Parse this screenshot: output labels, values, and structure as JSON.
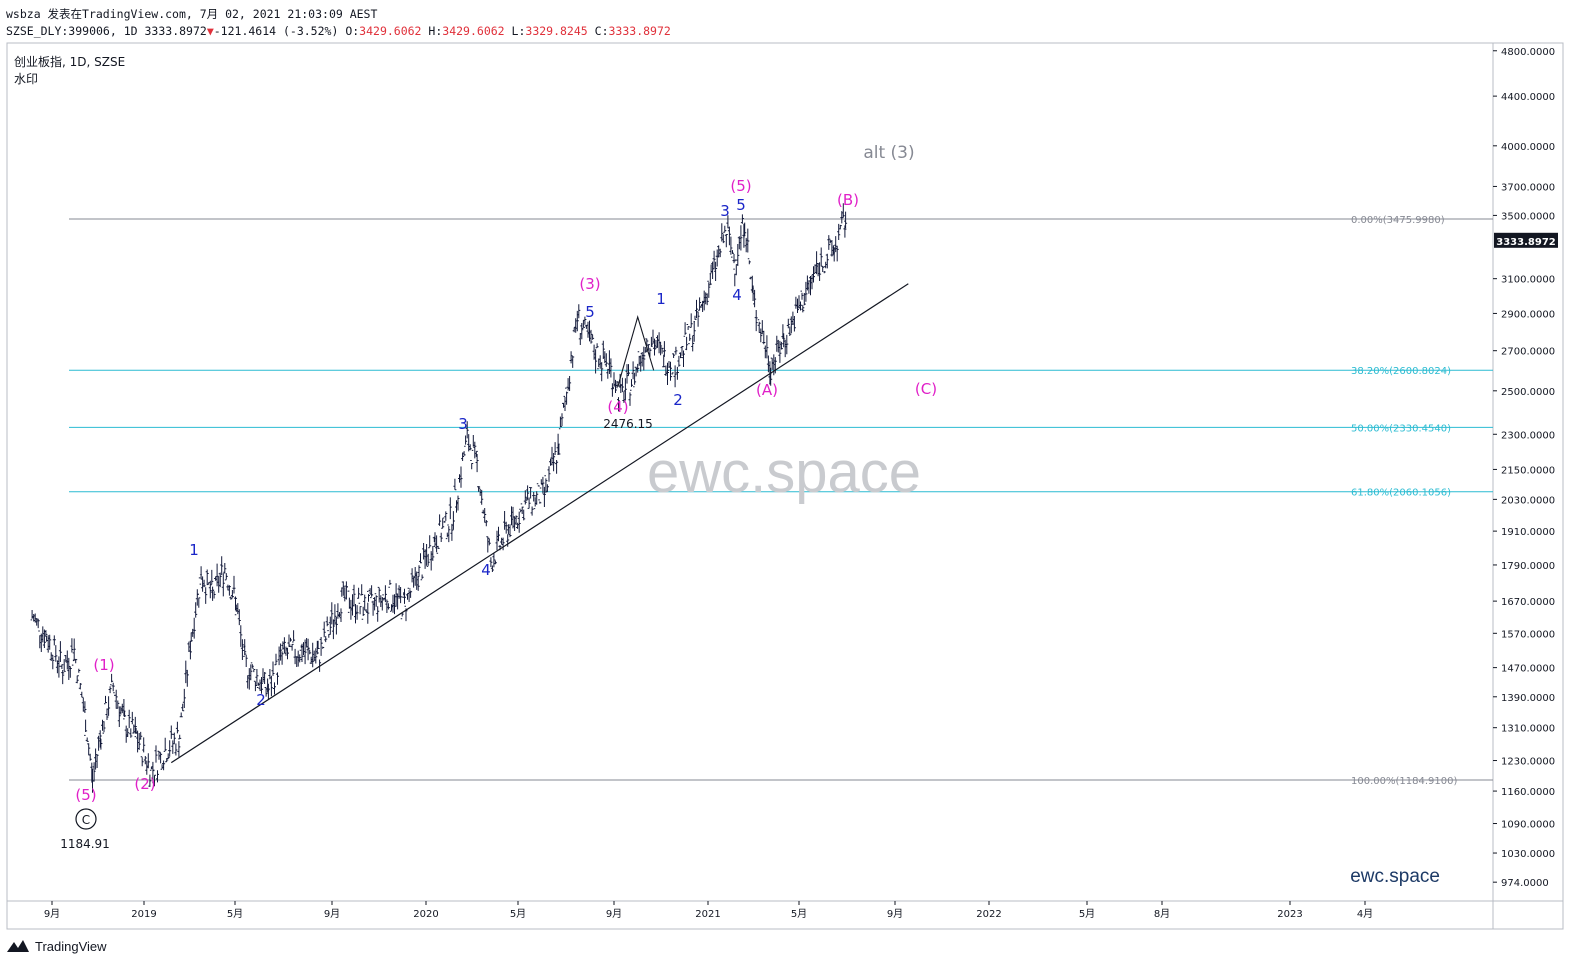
{
  "header": {
    "line1": "wsbza 发表在TradingView.com, 7月 02, 2021 21:03:09 AEST",
    "symbol": "SZSE_DLY:399006, 1D",
    "last": "3333.8972",
    "change": "-121.4614 (-3.52%)",
    "o_label": "O:",
    "o": "3429.6062",
    "h_label": "H:",
    "h": "3429.6062",
    "l_label": "L:",
    "l": "3329.8245",
    "c_label": "C:",
    "c": "3333.8972"
  },
  "legend": {
    "title": "创业板指, 1D, SZSE",
    "watermark_label": "水印"
  },
  "watermarks": {
    "center": "ewc.space",
    "corner": "ewc.space"
  },
  "price_tag": "3333.8972",
  "y_axis_ticks": [
    "4800.0000",
    "4400.0000",
    "4000.0000",
    "3700.0000",
    "3500.0000",
    "3100.0000",
    "2900.0000",
    "2700.0000",
    "2500.0000",
    "2300.0000",
    "2150.0000",
    "2030.0000",
    "1910.0000",
    "1790.0000",
    "1670.0000",
    "1570.0000",
    "1470.0000",
    "1390.0000",
    "1310.0000",
    "1230.0000",
    "1160.0000",
    "1090.0000",
    "1030.0000",
    "974.0000"
  ],
  "x_axis_ticks": [
    "9月",
    "2019",
    "5月",
    "9月",
    "2020",
    "5月",
    "9月",
    "2021",
    "5月",
    "9月",
    "2022",
    "5月",
    "8月",
    "2023",
    "4月"
  ],
  "fib_levels": [
    {
      "label": "0.00%(3475.9980)",
      "value": 3475.998,
      "color": "#868993"
    },
    {
      "label": "38.20%(2600.8024)",
      "value": 2600.8024,
      "color": "#2cbcd2"
    },
    {
      "label": "50.00%(2330.4540)",
      "value": 2330.454,
      "color": "#2cbcd2"
    },
    {
      "label": "61.80%(2060.1056)",
      "value": 2060.1056,
      "color": "#2cbcd2"
    },
    {
      "label": "100.00%(1184.9100)",
      "value": 1184.91,
      "color": "#868993"
    }
  ],
  "wave_labels": [
    {
      "text": "(5)",
      "color": "#e020c8"
    },
    {
      "text": "C",
      "color": "#131722"
    },
    {
      "text": "1184.91",
      "color": "#131722"
    },
    {
      "text": "(1)",
      "color": "#e020c8"
    },
    {
      "text": "(2)",
      "color": "#e020c8"
    },
    {
      "text": "1",
      "color": "#1a26c8"
    },
    {
      "text": "2",
      "color": "#1a26c8"
    },
    {
      "text": "3",
      "color": "#1a26c8"
    },
    {
      "text": "4",
      "color": "#1a26c8"
    },
    {
      "text": "(3)",
      "color": "#e020c8"
    },
    {
      "text": "5",
      "color": "#1a26c8"
    },
    {
      "text": "(4)",
      "color": "#e020c8"
    },
    {
      "text": "2476.15",
      "color": "#131722"
    },
    {
      "text": "1",
      "color": "#1a26c8"
    },
    {
      "text": "2",
      "color": "#1a26c8"
    },
    {
      "text": "3",
      "color": "#1a26c8"
    },
    {
      "text": "5",
      "color": "#1a26c8"
    },
    {
      "text": "(5)",
      "color": "#e020c8"
    },
    {
      "text": "4",
      "color": "#1a26c8"
    },
    {
      "text": "(A)",
      "color": "#e020c8"
    },
    {
      "text": "(B)",
      "color": "#e020c8"
    },
    {
      "text": "(C)",
      "color": "#e020c8"
    },
    {
      "text": "alt (3)",
      "color": "#868993"
    }
  ],
  "footer": {
    "brand": "TradingView"
  },
  "chart_data": {
    "type": "line",
    "title": "创业板指, 1D, SZSE",
    "y_scale": "log",
    "y_range": [
      950,
      4900
    ],
    "x_range": [
      "2018-08-01",
      "2023-05-15"
    ],
    "series": [
      {
        "values": [
          {
            "x": "2018-08-01",
            "y": 1620
          },
          {
            "x": "2018-08-20",
            "y": 1560
          },
          {
            "x": "2018-09-10",
            "y": 1470
          },
          {
            "x": "2018-09-25",
            "y": 1520
          },
          {
            "x": "2018-10-10",
            "y": 1330
          },
          {
            "x": "2018-10-19",
            "y": 1185
          },
          {
            "x": "2018-10-30",
            "y": 1300
          },
          {
            "x": "2018-11-15",
            "y": 1420
          },
          {
            "x": "2018-11-30",
            "y": 1320
          },
          {
            "x": "2018-12-15",
            "y": 1290
          },
          {
            "x": "2019-01-04",
            "y": 1205
          },
          {
            "x": "2019-01-20",
            "y": 1250
          },
          {
            "x": "2019-02-10",
            "y": 1290
          },
          {
            "x": "2019-02-25",
            "y": 1560
          },
          {
            "x": "2019-03-10",
            "y": 1760
          },
          {
            "x": "2019-03-25",
            "y": 1690
          },
          {
            "x": "2019-04-10",
            "y": 1780
          },
          {
            "x": "2019-04-25",
            "y": 1660
          },
          {
            "x": "2019-05-06",
            "y": 1480
          },
          {
            "x": "2019-06-06",
            "y": 1410
          },
          {
            "x": "2019-06-25",
            "y": 1510
          },
          {
            "x": "2019-07-20",
            "y": 1520
          },
          {
            "x": "2019-08-10",
            "y": 1500
          },
          {
            "x": "2019-09-10",
            "y": 1680
          },
          {
            "x": "2019-10-15",
            "y": 1650
          },
          {
            "x": "2019-11-10",
            "y": 1690
          },
          {
            "x": "2019-12-01",
            "y": 1660
          },
          {
            "x": "2019-12-20",
            "y": 1760
          },
          {
            "x": "2020-01-10",
            "y": 1880
          },
          {
            "x": "2020-02-01",
            "y": 1960
          },
          {
            "x": "2020-02-21",
            "y": 2280
          },
          {
            "x": "2020-03-05",
            "y": 2170
          },
          {
            "x": "2020-03-23",
            "y": 1800
          },
          {
            "x": "2020-04-15",
            "y": 1920
          },
          {
            "x": "2020-05-10",
            "y": 2020
          },
          {
            "x": "2020-06-01",
            "y": 2050
          },
          {
            "x": "2020-06-20",
            "y": 2250
          },
          {
            "x": "2020-07-14",
            "y": 2880
          },
          {
            "x": "2020-08-05",
            "y": 2700
          },
          {
            "x": "2020-08-25",
            "y": 2620
          },
          {
            "x": "2020-09-09",
            "y": 2476
          },
          {
            "x": "2020-09-25",
            "y": 2560
          },
          {
            "x": "2020-10-15",
            "y": 2780
          },
          {
            "x": "2020-11-05",
            "y": 2660
          },
          {
            "x": "2020-11-20",
            "y": 2640
          },
          {
            "x": "2020-12-15",
            "y": 2830
          },
          {
            "x": "2021-01-05",
            "y": 3100
          },
          {
            "x": "2021-01-25",
            "y": 3400
          },
          {
            "x": "2021-02-05",
            "y": 3200
          },
          {
            "x": "2021-02-18",
            "y": 3470
          },
          {
            "x": "2021-03-01",
            "y": 2980
          },
          {
            "x": "2021-03-24",
            "y": 2620
          },
          {
            "x": "2021-04-10",
            "y": 2760
          },
          {
            "x": "2021-05-05",
            "y": 2970
          },
          {
            "x": "2021-05-25",
            "y": 3180
          },
          {
            "x": "2021-06-15",
            "y": 3280
          },
          {
            "x": "2021-06-30",
            "y": 3476
          },
          {
            "x": "2021-07-02",
            "y": 3334
          }
        ]
      }
    ],
    "trendline": [
      {
        "x": "2019-01-30",
        "y": 1225
      },
      {
        "x": "2021-09-20",
        "y": 3070
      }
    ],
    "triangle": [
      {
        "x": "2020-09-05",
        "y": 2520
      },
      {
        "x": "2020-10-01",
        "y": 2880
      },
      {
        "x": "2020-10-22",
        "y": 2600
      }
    ]
  }
}
